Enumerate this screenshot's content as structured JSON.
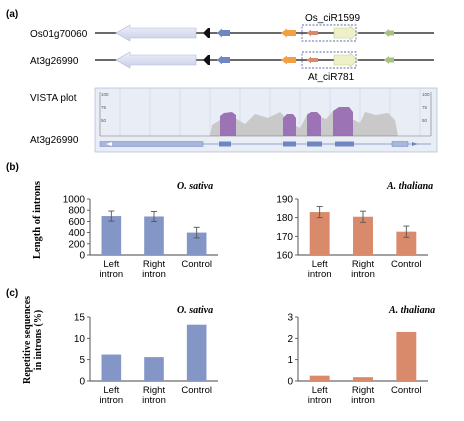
{
  "panel_labels": {
    "a": "(a)",
    "b": "(b)",
    "c": "(c)"
  },
  "gene_tracks": [
    {
      "name": "Os01g70060",
      "ann": "Os_ciR1599"
    },
    {
      "name": "At3g26990",
      "ann": "At_ciR781"
    }
  ],
  "vista": {
    "title": "VISTA plot",
    "gene": "At3g26990",
    "left_ticks": [
      "100",
      "75",
      "50"
    ],
    "right_ticks": [
      "100",
      "75",
      "50"
    ]
  },
  "colors": {
    "rice_bar": "#8396c6",
    "arabidopsis_bar": "#d98a6a",
    "vista_conserved": "#9c73b5",
    "vista_background": "#c9c9c9",
    "panel_bg": "#e9eef6",
    "arrow_lavender": "#d2d6ec",
    "arrow_blue": "#6f86c2",
    "arrow_orange": "#f2a043",
    "arrow_salmon": "#d98a6a",
    "arrow_cream": "#eef1c8",
    "arrow_olive": "#a8c080"
  },
  "chart_data": [
    {
      "type": "bar",
      "panel": "b",
      "title": "O. sativa",
      "ylabel": "Length of introns",
      "categories": [
        "Left intron",
        "Right intron",
        "Control"
      ],
      "values": [
        695,
        688,
        400
      ],
      "errors": [
        90,
        90,
        95
      ],
      "ylim": [
        0,
        1000
      ],
      "yticks": [
        "0",
        "200",
        "400",
        "600",
        "800",
        "1000"
      ]
    },
    {
      "type": "bar",
      "panel": "b",
      "title": "A. thaliana",
      "ylabel": "",
      "categories": [
        "Left intron",
        "Right intron",
        "Control"
      ],
      "values": [
        183,
        180.5,
        172.5
      ],
      "errors": [
        3,
        3,
        3
      ],
      "ylim": [
        160,
        190
      ],
      "yticks": [
        "160",
        "170",
        "180",
        "190"
      ]
    },
    {
      "type": "bar",
      "panel": "c",
      "title": "O. sativa",
      "ylabel": "Repetitive sequences in introns (%)",
      "categories": [
        "Left intron",
        "Right intron",
        "Control"
      ],
      "values": [
        6.2,
        5.6,
        13.2
      ],
      "errors": [],
      "ylim": [
        0,
        15
      ],
      "yticks": [
        "0",
        "5",
        "10",
        "15"
      ]
    },
    {
      "type": "bar",
      "panel": "c",
      "title": "A. thaliana",
      "ylabel": "",
      "categories": [
        "Left intron",
        "Right intron",
        "Control"
      ],
      "values": [
        0.25,
        0.18,
        2.3
      ],
      "errors": [],
      "ylim": [
        0,
        3
      ],
      "yticks": [
        "0",
        "1",
        "2",
        "3"
      ]
    }
  ]
}
